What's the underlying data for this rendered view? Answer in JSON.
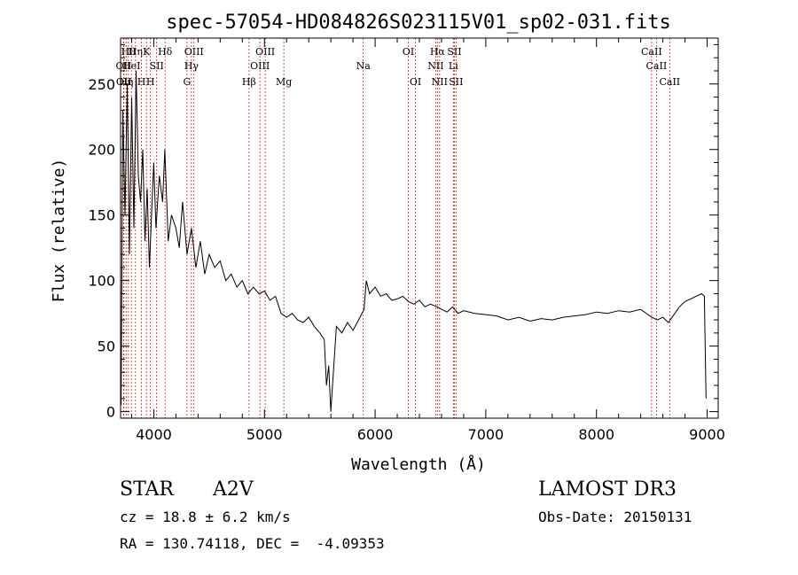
{
  "chart_data": {
    "type": "line",
    "title": "spec-57054-HD084826S023115V01_sp02-031.fits",
    "xlabel": "Wavelength (Å)",
    "ylabel": "Flux (relative)",
    "xlim": [
      3700,
      9100
    ],
    "ylim": [
      -5,
      285
    ],
    "xticks": [
      4000,
      5000,
      6000,
      7000,
      8000,
      9000
    ],
    "yticks": [
      0,
      50,
      100,
      150,
      200,
      250
    ],
    "grid": false,
    "legend": "none",
    "series": [
      {
        "x": [
          3705,
          3720,
          3740,
          3760,
          3780,
          3800,
          3820,
          3840,
          3860,
          3880,
          3900,
          3920,
          3940,
          3960,
          3980,
          4000,
          4020,
          4050,
          4080,
          4100,
          4130,
          4160,
          4200,
          4230,
          4260,
          4300,
          4340,
          4380,
          4420,
          4460,
          4500,
          4550,
          4600,
          4650,
          4700,
          4750,
          4800,
          4850,
          4900,
          4950,
          5000,
          5050,
          5100,
          5150,
          5200,
          5250,
          5300,
          5350,
          5400,
          5450,
          5500,
          5540,
          5560,
          5580,
          5600,
          5650,
          5700,
          5750,
          5800,
          5850,
          5900,
          5920,
          5950,
          6000,
          6050,
          6100,
          6150,
          6200,
          6250,
          6300,
          6350,
          6400,
          6450,
          6500,
          6560,
          6600,
          6650,
          6700,
          6750,
          6800,
          6900,
          7000,
          7100,
          7200,
          7300,
          7400,
          7500,
          7600,
          7700,
          7800,
          7900,
          8000,
          8100,
          8200,
          8300,
          8400,
          8500,
          8550,
          8600,
          8650,
          8700,
          8750,
          8800,
          8850,
          8900,
          8950,
          8975,
          8990
        ],
        "y": [
          5,
          230,
          150,
          250,
          120,
          240,
          140,
          260,
          180,
          160,
          200,
          130,
          170,
          110,
          150,
          190,
          140,
          180,
          160,
          200,
          130,
          150,
          140,
          125,
          160,
          120,
          140,
          110,
          130,
          105,
          120,
          110,
          115,
          100,
          105,
          95,
          100,
          90,
          95,
          90,
          92,
          85,
          88,
          75,
          72,
          75,
          70,
          68,
          72,
          65,
          60,
          55,
          20,
          35,
          0,
          65,
          60,
          68,
          62,
          70,
          78,
          100,
          90,
          95,
          88,
          90,
          85,
          86,
          88,
          84,
          82,
          85,
          80,
          82,
          80,
          78,
          76,
          80,
          75,
          77,
          75,
          74,
          73,
          70,
          72,
          69,
          71,
          70,
          72,
          73,
          74,
          76,
          75,
          77,
          76,
          78,
          72,
          70,
          72,
          68,
          74,
          80,
          84,
          86,
          88,
          90,
          88,
          10
        ]
      }
    ],
    "lines": [
      {
        "w": 3727,
        "label": "OII",
        "row": 2
      },
      {
        "w": 3730,
        "label": "OII",
        "row": 3
      },
      {
        "w": 3750,
        "label": "Hη",
        "row": 3
      },
      {
        "w": 3770,
        "label": "Hθ",
        "row": 1
      },
      {
        "w": 3798,
        "label": "HeI",
        "row": 2
      },
      {
        "w": 3835,
        "label": "Hη",
        "row": 1
      },
      {
        "w": 3889,
        "label": "H",
        "row": 3
      },
      {
        "w": 3934,
        "label": "K",
        "row": 1
      },
      {
        "w": 3970,
        "label": "H",
        "row": 3
      },
      {
        "w": 4026,
        "label": "SII",
        "row": 2
      },
      {
        "w": 4102,
        "label": "Hδ",
        "row": 1
      },
      {
        "w": 4300,
        "label": "G",
        "row": 3
      },
      {
        "w": 4340,
        "label": "Hγ",
        "row": 2
      },
      {
        "w": 4363,
        "label": "OIII",
        "row": 1
      },
      {
        "w": 4861,
        "label": "Hβ",
        "row": 3
      },
      {
        "w": 4959,
        "label": "OIII",
        "row": 2
      },
      {
        "w": 5007,
        "label": "OIII",
        "row": 1
      },
      {
        "w": 5175,
        "label": "Mg",
        "row": 3
      },
      {
        "w": 5893,
        "label": "Na",
        "row": 2
      },
      {
        "w": 6300,
        "label": "OI",
        "row": 1
      },
      {
        "w": 6364,
        "label": "OI",
        "row": 3
      },
      {
        "w": 6548,
        "label": "NII",
        "row": 2
      },
      {
        "w": 6563,
        "label": "Hα",
        "row": 1
      },
      {
        "w": 6583,
        "label": "NII",
        "row": 3
      },
      {
        "w": 6707,
        "label": "Li",
        "row": 2
      },
      {
        "w": 6716,
        "label": "SII",
        "row": 1
      },
      {
        "w": 6731,
        "label": "SII",
        "row": 3
      },
      {
        "w": 8498,
        "label": "CaII",
        "row": 1
      },
      {
        "w": 8542,
        "label": "CaII",
        "row": 2
      },
      {
        "w": 8662,
        "label": "CaII",
        "row": 3
      }
    ]
  },
  "info": {
    "object_class": "STAR",
    "subclass": "A2V",
    "survey": "LAMOST DR3",
    "cz": "cz = 18.8 ± 6.2 km/s",
    "obs_date": "Obs-Date: 20150131",
    "coords": "RA = 130.74118, DEC =  -4.09353"
  },
  "colors": {
    "axis": "#000000",
    "spectrum": "#000000",
    "line_marker": "#c8281e"
  }
}
